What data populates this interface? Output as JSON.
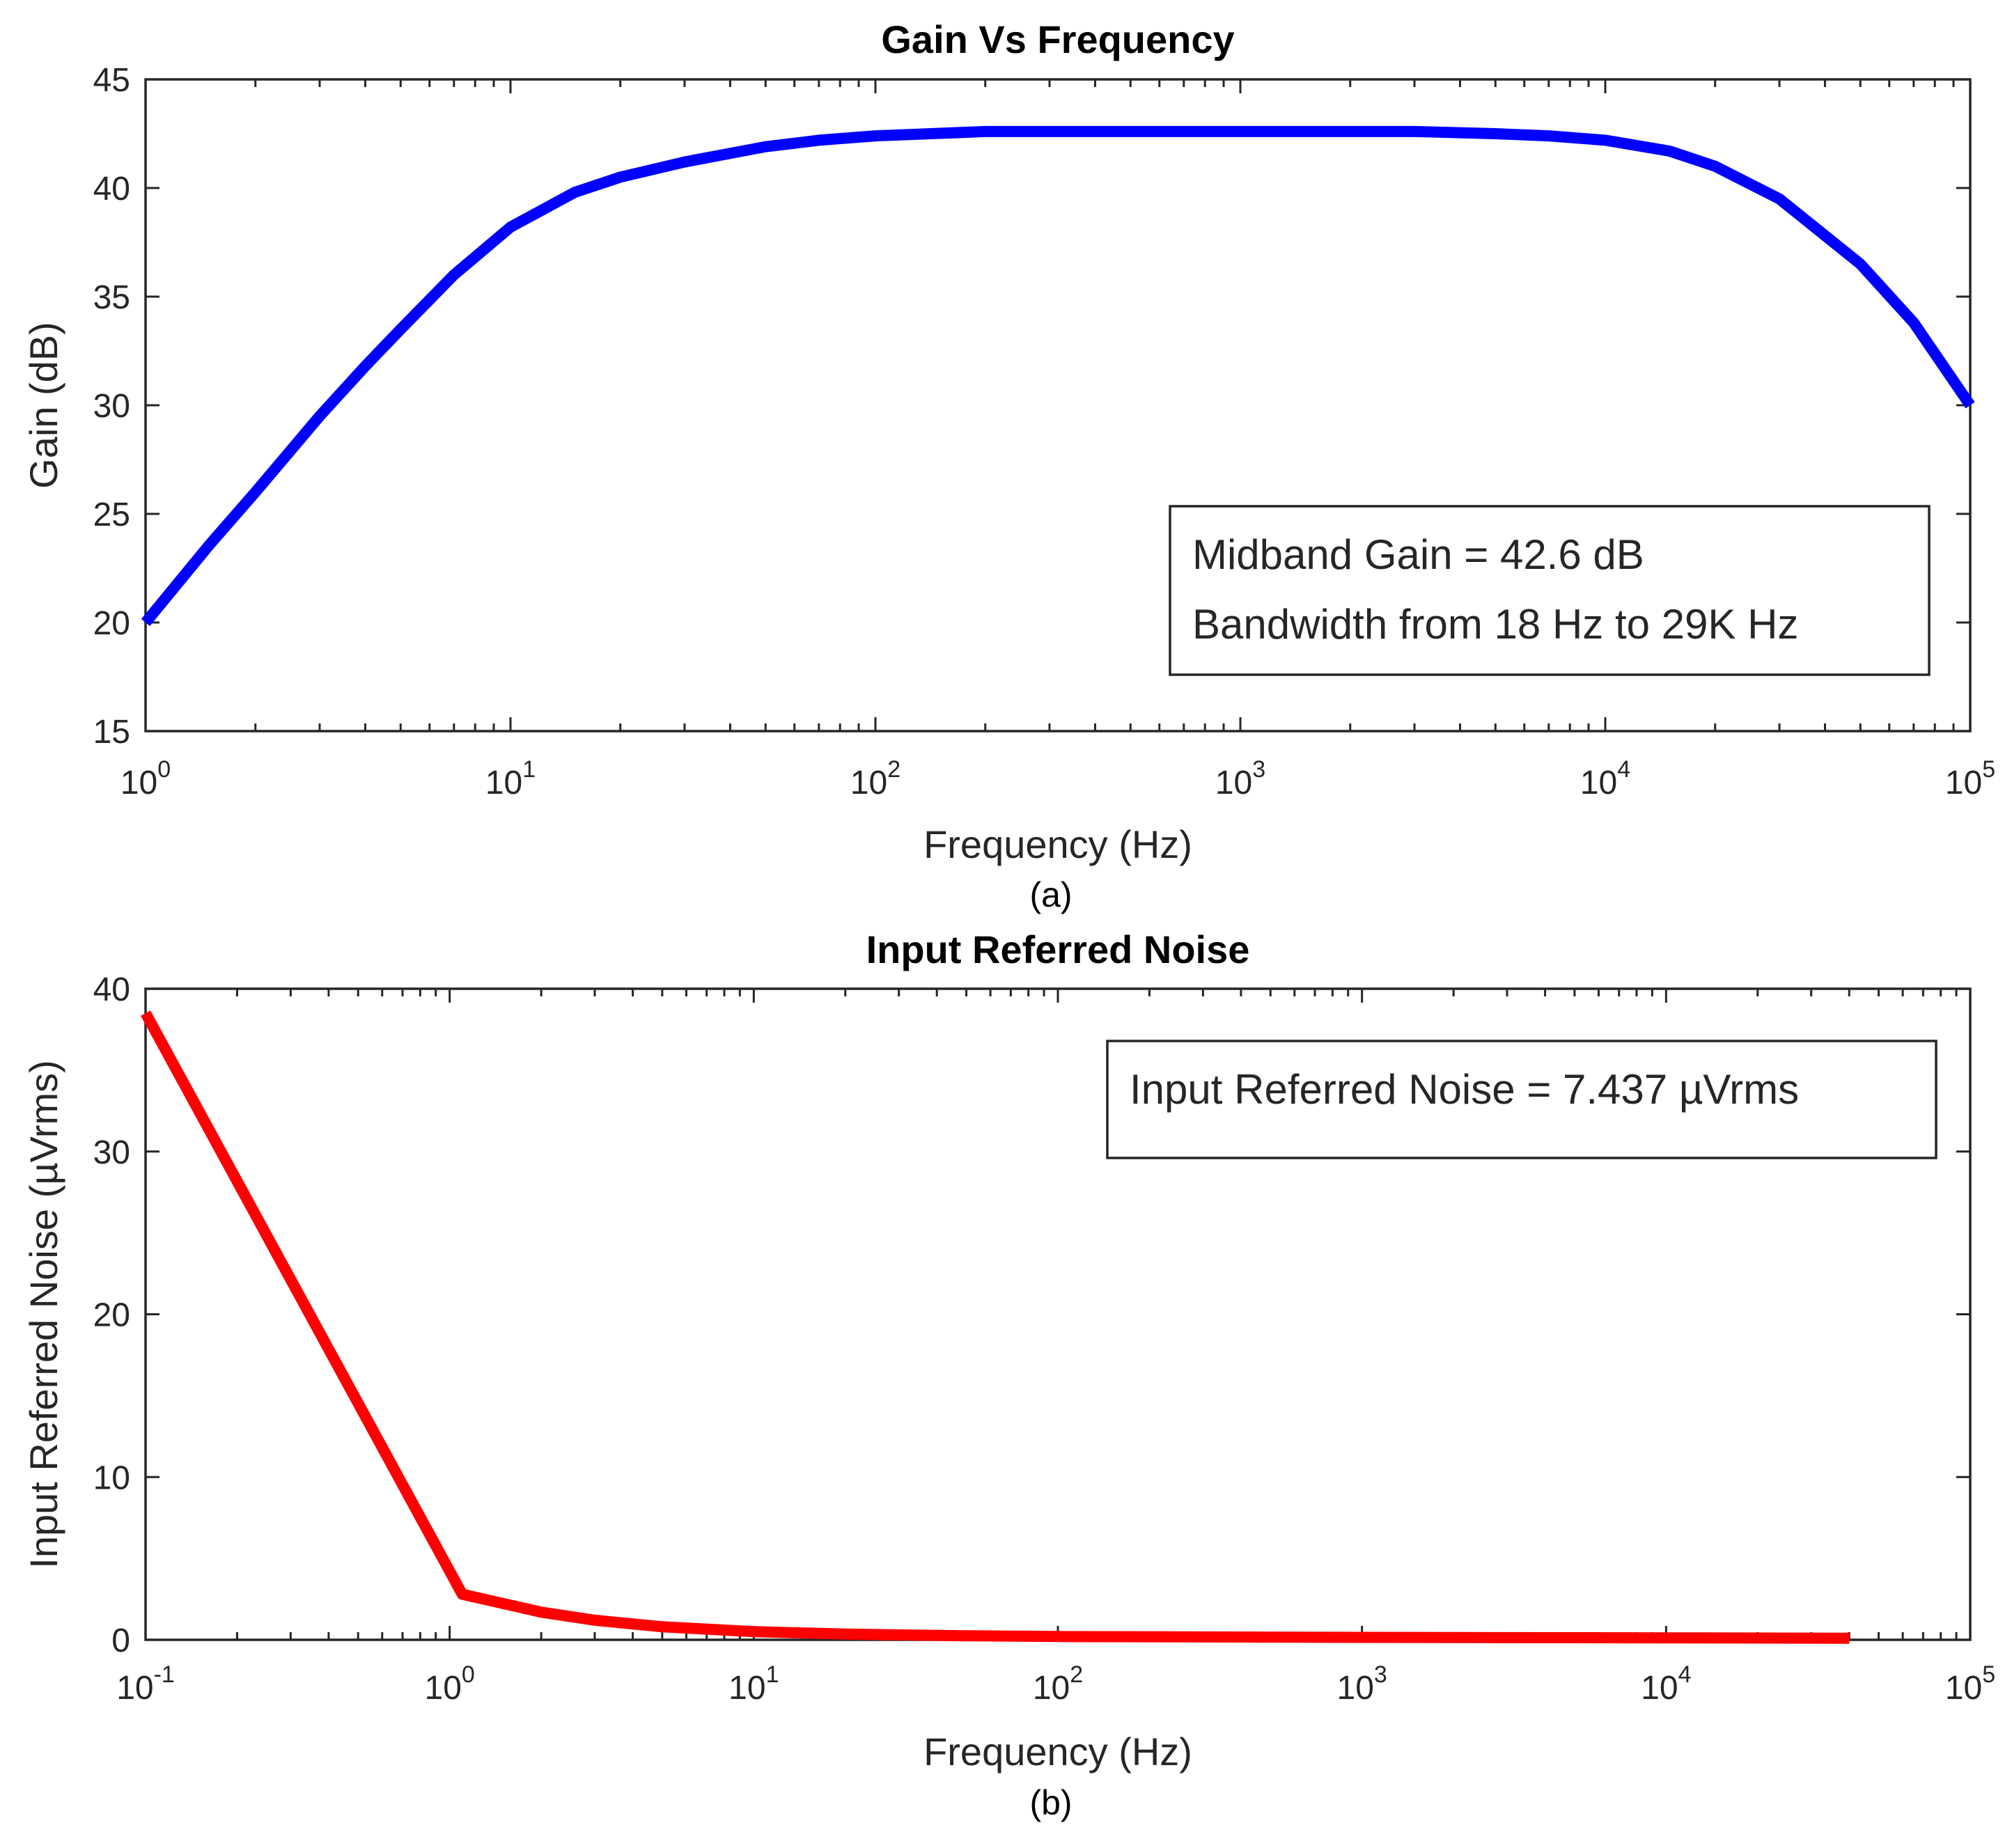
{
  "chart_data": [
    {
      "type": "line",
      "title": "Gain Vs Frequency",
      "xlabel": "Frequency (Hz)",
      "ylabel": "Gain (dB)",
      "xscale": "log",
      "xlim": [
        1,
        100000
      ],
      "ylim": [
        15,
        45
      ],
      "x_ticks": [
        {
          "base": "10",
          "exp": "0"
        },
        {
          "base": "10",
          "exp": "1"
        },
        {
          "base": "10",
          "exp": "2"
        },
        {
          "base": "10",
          "exp": "3"
        },
        {
          "base": "10",
          "exp": "4"
        },
        {
          "base": "10",
          "exp": "5"
        }
      ],
      "y_ticks": [
        "15",
        "20",
        "25",
        "30",
        "35",
        "40",
        "45"
      ],
      "caption": "(a)",
      "annotation_lines": [
        "Midband Gain = 42.6 dB",
        "Bandwidth from 18 Hz to 29K Hz"
      ],
      "legend_position": "bottom-right",
      "series": [
        {
          "name": "Gain",
          "color": "#0000ff",
          "x": [
            1,
            1.5,
            2,
            3,
            4,
            5,
            7,
            10,
            15,
            20,
            30,
            50,
            70,
            100,
            200,
            300,
            500,
            1000,
            2000,
            3000,
            5000,
            7000,
            10000,
            15000,
            20000,
            30000,
            50000,
            70000,
            100000
          ],
          "y": [
            20.0,
            23.6,
            26.0,
            29.5,
            31.8,
            33.5,
            36.0,
            38.2,
            39.8,
            40.5,
            41.2,
            41.9,
            42.2,
            42.4,
            42.6,
            42.6,
            42.6,
            42.6,
            42.6,
            42.6,
            42.5,
            42.4,
            42.2,
            41.7,
            41.0,
            39.5,
            36.5,
            33.8,
            30.0
          ]
        }
      ]
    },
    {
      "type": "line",
      "title": "Input Referred Noise",
      "xlabel": "Frequency (Hz)",
      "ylabel": "Input Referred Noise (µVrms)",
      "xscale": "log",
      "xlim": [
        0.1,
        100000
      ],
      "ylim": [
        0,
        40
      ],
      "x_ticks": [
        {
          "base": "10",
          "exp": "-1"
        },
        {
          "base": "10",
          "exp": "0"
        },
        {
          "base": "10",
          "exp": "1"
        },
        {
          "base": "10",
          "exp": "2"
        },
        {
          "base": "10",
          "exp": "3"
        },
        {
          "base": "10",
          "exp": "4"
        },
        {
          "base": "10",
          "exp": "5"
        }
      ],
      "y_ticks": [
        "0",
        "10",
        "20",
        "30",
        "40"
      ],
      "caption": "(b)",
      "annotation_lines": [
        "Input Referred Noise = 7.437 µVrms"
      ],
      "legend_position": "top-right",
      "series": [
        {
          "name": "Input Referred Noise",
          "color": "#ff0000",
          "x": [
            0.1,
            1.1,
            2,
            3,
            5,
            10,
            20,
            50,
            100,
            1000,
            10000,
            40000
          ],
          "y": [
            38.5,
            2.8,
            1.7,
            1.2,
            0.8,
            0.5,
            0.35,
            0.25,
            0.2,
            0.15,
            0.12,
            0.1
          ]
        }
      ]
    }
  ]
}
